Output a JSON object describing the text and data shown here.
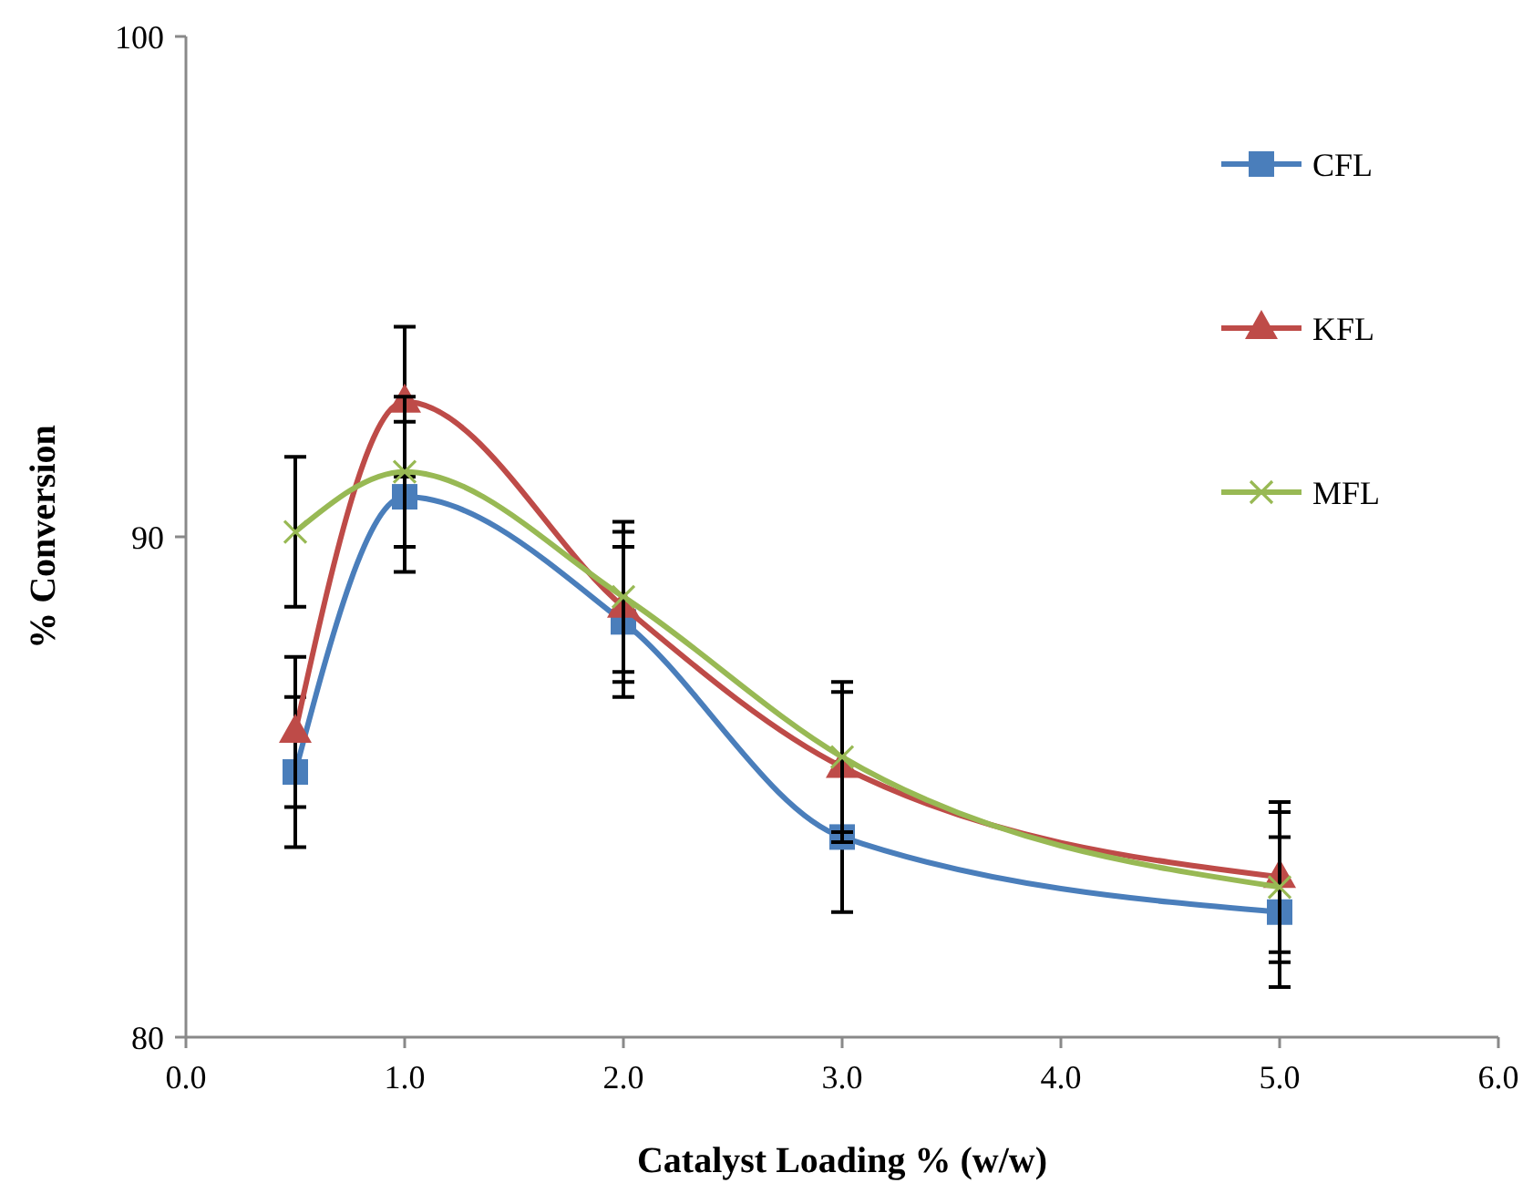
{
  "chart_data": {
    "type": "line",
    "xlabel": "Catalyst Loading % (w/w)",
    "ylabel": "% Conversion",
    "x": [
      0.5,
      1,
      2,
      3,
      5
    ],
    "series": [
      {
        "name": "CFL",
        "color": "#4a7ebb",
        "marker": "square",
        "values": [
          85.3,
          90.8,
          88.3,
          84.0,
          82.5
        ],
        "errors": [
          1.5,
          1.5,
          1.5,
          1.5,
          1.5
        ]
      },
      {
        "name": "KFL",
        "color": "#be4b48",
        "marker": "triangle",
        "values": [
          86.1,
          92.7,
          88.6,
          85.4,
          83.2
        ],
        "errors": [
          1.5,
          1.5,
          1.5,
          1.5,
          1.5
        ]
      },
      {
        "name": "MFL",
        "color": "#98b954",
        "marker": "cross",
        "values": [
          90.1,
          91.3,
          88.8,
          85.6,
          83.0
        ],
        "errors": [
          1.5,
          1.5,
          1.5,
          1.5,
          1.5
        ]
      }
    ],
    "xlim": [
      0,
      6
    ],
    "xticks": [
      {
        "value": 0,
        "label": "0.0"
      },
      {
        "value": 1,
        "label": "1.0"
      },
      {
        "value": 2,
        "label": "2.0"
      },
      {
        "value": 3,
        "label": "3.0"
      },
      {
        "value": 4,
        "label": "4.0"
      },
      {
        "value": 5,
        "label": "5.0"
      },
      {
        "value": 6,
        "label": "6.0"
      }
    ],
    "ylim": [
      80,
      100
    ],
    "yticks": [
      80,
      90,
      100
    ],
    "grid": false,
    "legend": "top right"
  }
}
